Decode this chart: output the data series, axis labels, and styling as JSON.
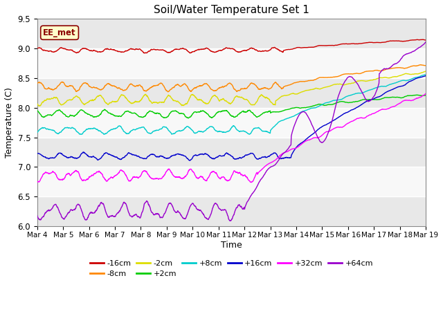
{
  "title": "Soil/Water Temperature Set 1",
  "xlabel": "Time",
  "ylabel": "Temperature (C)",
  "ylim": [
    6.0,
    9.5
  ],
  "annotation": "EE_met",
  "x_ticks": [
    4,
    5,
    6,
    7,
    8,
    9,
    10,
    11,
    12,
    13,
    14,
    15,
    16,
    17,
    18,
    19
  ],
  "yticks": [
    6.0,
    6.5,
    7.0,
    7.5,
    8.0,
    8.5,
    9.0,
    9.5
  ],
  "bg_light": "#f0f0f0",
  "bg_dark": "#d8d8d8",
  "series": [
    {
      "label": "-16cm",
      "color": "#cc0000",
      "base": 8.97,
      "noise": 0.055,
      "osc_amp": 0.03,
      "trend_start": 13.5,
      "trend_end": 9.15
    },
    {
      "label": "-8cm",
      "color": "#ff8800",
      "base": 8.35,
      "noise": 0.07,
      "osc_amp": 0.05,
      "trend_start": 13.5,
      "trend_end": 8.72
    },
    {
      "label": "-2cm",
      "color": "#dddd00",
      "base": 8.13,
      "noise": 0.09,
      "osc_amp": 0.06,
      "trend_start": 13.2,
      "trend_end": 8.6
    },
    {
      "label": "+2cm",
      "color": "#00cc00",
      "base": 7.9,
      "noise": 0.07,
      "osc_amp": 0.05,
      "trend_start": 13.0,
      "trend_end": 8.22
    },
    {
      "label": "+8cm",
      "color": "#00cccc",
      "base": 7.62,
      "noise": 0.06,
      "osc_amp": 0.05,
      "trend_start": 13.0,
      "trend_end": 8.55
    },
    {
      "label": "+16cm",
      "color": "#0000cc",
      "base": 7.18,
      "noise": 0.07,
      "osc_amp": 0.04,
      "trend_start": 13.8,
      "trend_end": 8.55
    },
    {
      "label": "+32cm",
      "color": "#ff00ff",
      "base": 6.85,
      "noise": 0.1,
      "osc_amp": 0.07,
      "trend_start": 12.5,
      "trend_end": 8.22
    },
    {
      "label": "+64cm",
      "color": "#9900cc",
      "base": 6.25,
      "noise": 0.12,
      "osc_amp": 0.1,
      "trend_start": 12.0,
      "trend_end": 9.1
    }
  ],
  "figsize": [
    6.4,
    4.8
  ],
  "dpi": 100
}
